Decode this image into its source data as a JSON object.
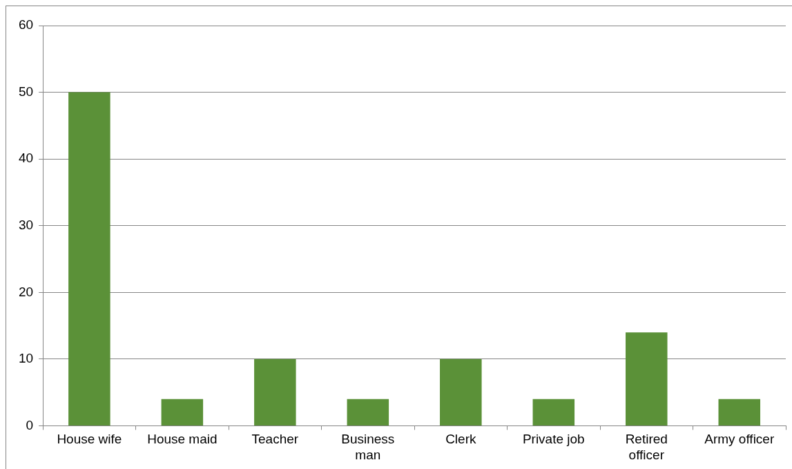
{
  "chart_data": {
    "type": "bar",
    "categories": [
      "House wife",
      "House maid",
      "Teacher",
      "Business man",
      "Clerk",
      "Private job",
      "Retired officer",
      "Army officer"
    ],
    "values": [
      50,
      4,
      10,
      4,
      10,
      4,
      14,
      4
    ],
    "color": "#5b9138",
    "ylim": [
      0,
      60
    ],
    "yticks": [
      0,
      10,
      20,
      30,
      40,
      50,
      60
    ],
    "grid": "y",
    "legend": false
  }
}
